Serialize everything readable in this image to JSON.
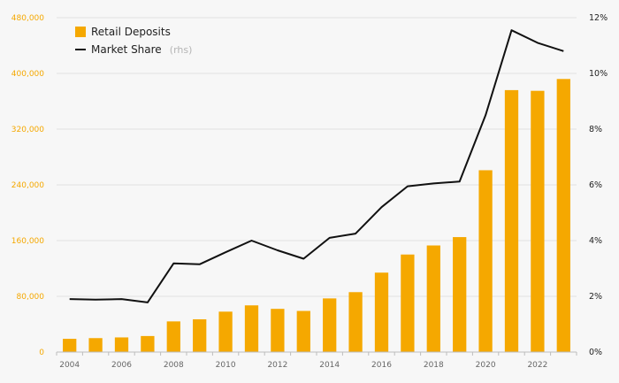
{
  "chart_data": {
    "type": "bar+line",
    "x": [
      2004,
      2005,
      2006,
      2007,
      2008,
      2009,
      2010,
      2011,
      2012,
      2013,
      2014,
      2015,
      2016,
      2017,
      2018,
      2019,
      2020,
      2021,
      2022,
      2023
    ],
    "x_tick_labels": [
      "2004",
      "2006",
      "2008",
      "2010",
      "2012",
      "2014",
      "2016",
      "2018",
      "2020",
      "2022"
    ],
    "series": [
      {
        "name": "Retail Deposits",
        "type": "bar",
        "axis": "left",
        "color": "#f5a800",
        "values": [
          19000,
          20000,
          21000,
          23000,
          44000,
          47000,
          58000,
          67000,
          62000,
          59000,
          77000,
          86000,
          114000,
          140000,
          153000,
          165000,
          261000,
          376000,
          375000,
          392000
        ]
      },
      {
        "name": "Market Share",
        "name_suffix": "(rhs)",
        "type": "line",
        "axis": "right",
        "color": "#111111",
        "values": [
          1.9,
          1.88,
          1.9,
          1.78,
          3.18,
          3.15,
          3.58,
          4.0,
          3.65,
          3.35,
          4.1,
          4.25,
          5.2,
          5.95,
          6.05,
          6.12,
          8.5,
          11.55,
          11.1,
          10.8
        ]
      }
    ],
    "left_axis": {
      "ylim": [
        0,
        480000
      ],
      "ticks": [
        0,
        80000,
        160000,
        240000,
        320000,
        400000,
        480000
      ],
      "tick_labels": [
        "0",
        "80,000",
        "160,000",
        "240,000",
        "320,000",
        "400,000",
        "480,000"
      ],
      "color": "#f5a800"
    },
    "right_axis": {
      "ylim": [
        0,
        12
      ],
      "ticks": [
        0,
        2,
        4,
        6,
        8,
        10,
        12
      ],
      "tick_labels": [
        "0%",
        "2%",
        "4%",
        "6%",
        "8%",
        "10%",
        "12%"
      ]
    },
    "grid": true,
    "legend": "top-left"
  }
}
